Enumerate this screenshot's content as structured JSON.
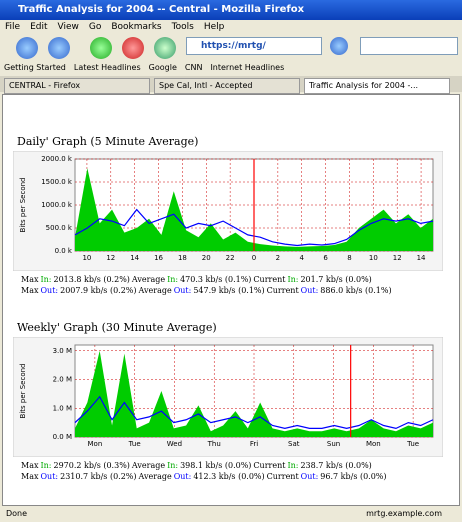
{
  "window": {
    "title": "Traffic Analysis for 2004 -- Central - Mozilla Firefox"
  },
  "menu": [
    "File",
    "Edit",
    "View",
    "Go",
    "Bookmarks",
    "Tools",
    "Help"
  ],
  "url": "https://mrtg/",
  "bookmarks": [
    "Getting Started",
    "Latest Headlines",
    "Google",
    "CNN",
    "Internet Headlines"
  ],
  "tabs": [
    "CENTRAL - Firefox",
    "Spe Cal, Intl - Accepted",
    "Traffic Analysis for 2004 -..."
  ],
  "graphs": [
    {
      "heading": "Daily' Graph (5 Minute Average)",
      "axis_label": "Bits per Second",
      "ylim": [
        0,
        2000
      ],
      "yticks": [
        {
          "value": 0,
          "label": "0.0 k"
        },
        {
          "value": 500,
          "label": "500.0 k"
        },
        {
          "value": 1000,
          "label": "1000.0 k"
        },
        {
          "value": 1500,
          "label": "1500.0 k"
        },
        {
          "value": 2000,
          "label": "2000.0 k"
        }
      ],
      "categories": [
        "10",
        "12",
        "14",
        "16",
        "18",
        "20",
        "22",
        "0",
        "2",
        "4",
        "6",
        "8",
        "10",
        "12",
        "14"
      ],
      "in": [
        300,
        1800,
        600,
        900,
        400,
        500,
        700,
        350,
        1300,
        450,
        300,
        600,
        250,
        400,
        200,
        150,
        120,
        100,
        90,
        100,
        110,
        130,
        200,
        500,
        700,
        900,
        600,
        800,
        500,
        700
      ],
      "out": [
        350,
        500,
        700,
        650,
        550,
        900,
        600,
        700,
        800,
        500,
        600,
        550,
        650,
        500,
        350,
        300,
        200,
        150,
        120,
        150,
        130,
        160,
        250,
        450,
        600,
        700,
        650,
        700,
        600,
        650
      ],
      "stats": [
        {
          "max_label": "Max",
          "in_word": "In:",
          "max": "2013.8 kb/s (0.2%)",
          "avg_label": "Average",
          "avg": "470.3 kb/s (0.1%)",
          "cur_label": "Current",
          "cur": "201.7 kb/s (0.0%)"
        },
        {
          "max_label": "Max",
          "in_word": "Out:",
          "max": "2007.9 kb/s (0.2%)",
          "avg_label": "Average",
          "avg": "547.9 kb/s (0.1%)",
          "cur_label": "Current",
          "cur": "886.0 kb/s (0.1%)"
        }
      ]
    },
    {
      "heading": "Weekly' Graph (30 Minute Average)",
      "axis_label": "Bits per Second",
      "ylim": [
        0,
        3.2
      ],
      "yticks": [
        {
          "value": 0,
          "label": "0.0 M"
        },
        {
          "value": 1,
          "label": "1.0 M"
        },
        {
          "value": 2,
          "label": "2.0 M"
        },
        {
          "value": 3,
          "label": "3.0 M"
        }
      ],
      "categories": [
        "Mon",
        "Tue",
        "Wed",
        "Thu",
        "Fri",
        "Sat",
        "Sun",
        "Mon",
        "Tue"
      ],
      "in": [
        0.3,
        1.2,
        3.0,
        0.4,
        2.9,
        0.3,
        0.5,
        1.6,
        0.3,
        0.4,
        1.1,
        0.2,
        0.4,
        0.9,
        0.3,
        1.2,
        0.3,
        0.2,
        0.3,
        0.2,
        0.2,
        0.3,
        0.2,
        0.3,
        0.6,
        0.3,
        0.2,
        0.4,
        0.3,
        0.5
      ],
      "out": [
        0.5,
        0.9,
        1.4,
        0.6,
        1.2,
        0.6,
        0.7,
        0.9,
        0.5,
        0.6,
        0.8,
        0.5,
        0.6,
        0.7,
        0.5,
        0.7,
        0.4,
        0.3,
        0.4,
        0.3,
        0.3,
        0.4,
        0.3,
        0.4,
        0.6,
        0.4,
        0.3,
        0.5,
        0.4,
        0.6
      ],
      "stats": [
        {
          "max_label": "Max",
          "in_word": "In:",
          "max": "2970.2 kb/s (0.3%)",
          "avg_label": "Average",
          "avg": "398.1 kb/s (0.0%)",
          "cur_label": "Current",
          "cur": "238.7 kb/s (0.0%)"
        },
        {
          "max_label": "Max",
          "in_word": "Out:",
          "max": "2310.7 kb/s (0.2%)",
          "avg_label": "Average",
          "avg": "412.3 kb/s (0.0%)",
          "cur_label": "Current",
          "cur": "96.7 kb/s (0.0%)"
        }
      ]
    }
  ],
  "status": {
    "left": "Done",
    "right": "mrtg.example.com"
  }
}
